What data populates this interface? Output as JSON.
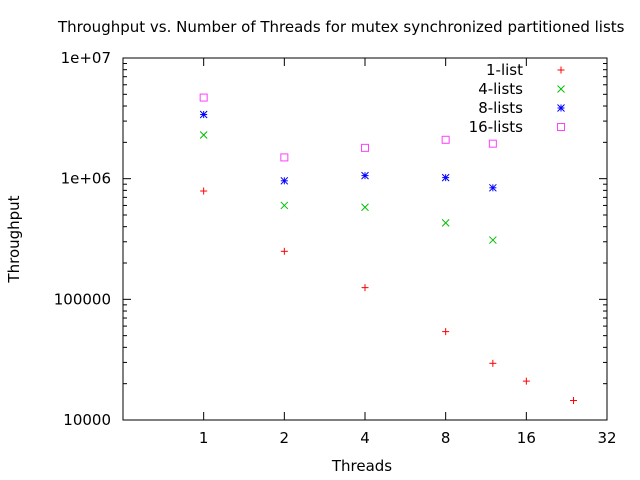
{
  "chart_data": {
    "type": "scatter",
    "title": "Throughput vs. Number of Threads for mutex synchronized partitioned lists",
    "xlabel": "Threads",
    "ylabel": "Throughput",
    "x_scale": "log2",
    "y_scale": "log10",
    "xlim": [
      0.5,
      32
    ],
    "ylim": [
      10000,
      10000000
    ],
    "x_ticks": [
      1,
      2,
      4,
      8,
      16,
      32
    ],
    "x_tick_labels": [
      "1",
      "2",
      "4",
      "8",
      "16",
      "32"
    ],
    "y_ticks": [
      10000,
      100000,
      1000000,
      10000000
    ],
    "y_tick_labels": [
      "10000",
      "100000",
      "1e+06",
      "1e+07"
    ],
    "grid": false,
    "legend_position": "top-right",
    "series": [
      {
        "name": "1-list",
        "color": "#ff0000",
        "marker": "plus",
        "points": [
          [
            1,
            790000
          ],
          [
            2,
            250000
          ],
          [
            4,
            125000
          ],
          [
            8,
            54000
          ],
          [
            12,
            29500
          ],
          [
            16,
            21000
          ],
          [
            24,
            14500
          ]
        ]
      },
      {
        "name": "4-lists",
        "color": "#00c000",
        "marker": "cross",
        "points": [
          [
            1,
            2300000
          ],
          [
            2,
            600000
          ],
          [
            4,
            580000
          ],
          [
            8,
            430000
          ],
          [
            12,
            310000
          ]
        ]
      },
      {
        "name": "8-lists",
        "color": "#0000ff",
        "marker": "star",
        "points": [
          [
            1,
            3400000
          ],
          [
            2,
            960000
          ],
          [
            4,
            1060000
          ],
          [
            8,
            1020000
          ],
          [
            12,
            840000
          ]
        ]
      },
      {
        "name": "16-lists",
        "color": "#ff40ff",
        "marker": "square",
        "points": [
          [
            1,
            4700000
          ],
          [
            2,
            1500000
          ],
          [
            4,
            1800000
          ],
          [
            8,
            2100000
          ],
          [
            12,
            1950000
          ]
        ]
      }
    ]
  }
}
